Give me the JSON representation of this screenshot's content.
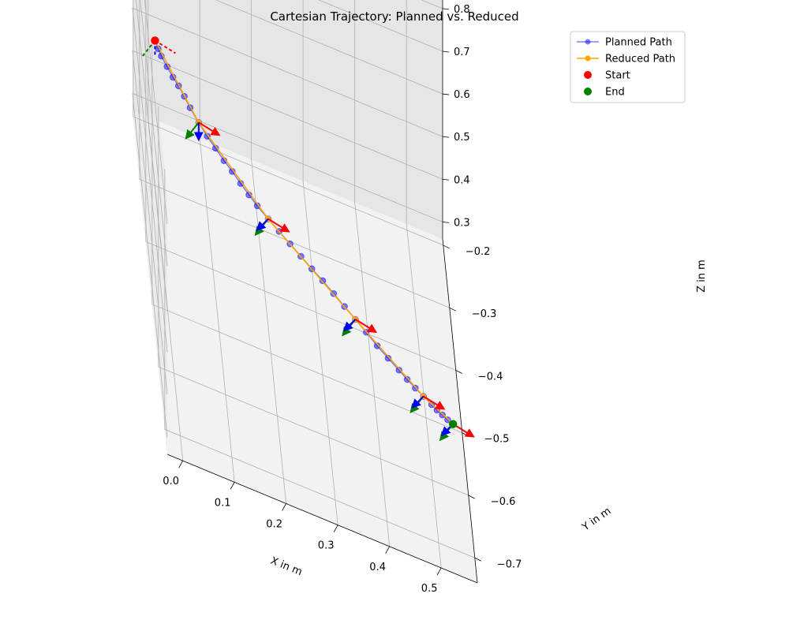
{
  "chart_data": {
    "type": "line3d",
    "title": "Cartesian Trajectory: Planned vs. Reduced",
    "xlabel": "X in m",
    "ylabel": "Y in m",
    "zlabel": "Z in m",
    "x_ticks": [
      "0.0",
      "0.1",
      "0.2",
      "0.3",
      "0.4",
      "0.5"
    ],
    "y_ticks": [
      "−0.7",
      "−0.6",
      "−0.5",
      "−0.4",
      "−0.3",
      "−0.2"
    ],
    "z_ticks": [
      "0.3",
      "0.4",
      "0.5",
      "0.6",
      "0.7",
      "0.8"
    ],
    "xlim": [
      -0.03,
      0.57
    ],
    "ylim": [
      -0.74,
      -0.19
    ],
    "zlim": [
      0.26,
      0.87
    ],
    "grid": true,
    "legend_position": "top-right",
    "legend": [
      {
        "label": "Planned Path",
        "kind": "line-marker",
        "color": "#0000ff"
      },
      {
        "label": "Reduced Path",
        "kind": "line-marker",
        "color": "#ffa500"
      },
      {
        "label": "Start",
        "kind": "point",
        "color": "#ff0000"
      },
      {
        "label": "End",
        "kind": "point",
        "color": "#008000"
      }
    ],
    "series": [
      {
        "name": "Planned Path",
        "color": "#0000ff",
        "points": [
          [
            0.0,
            -0.3,
            0.6
          ],
          [
            0.005,
            -0.31,
            0.598
          ],
          [
            0.01,
            -0.318,
            0.595
          ],
          [
            0.02,
            -0.328,
            0.59
          ],
          [
            0.03,
            -0.338,
            0.585
          ],
          [
            0.04,
            -0.345,
            0.58
          ],
          [
            0.05,
            -0.355,
            0.575
          ],
          [
            0.06,
            -0.365,
            0.568
          ],
          [
            0.075,
            -0.378,
            0.56
          ],
          [
            0.09,
            -0.39,
            0.553
          ],
          [
            0.105,
            -0.4,
            0.547
          ],
          [
            0.12,
            -0.41,
            0.54
          ],
          [
            0.135,
            -0.418,
            0.534
          ],
          [
            0.15,
            -0.428,
            0.528
          ],
          [
            0.165,
            -0.437,
            0.522
          ],
          [
            0.18,
            -0.446,
            0.517
          ],
          [
            0.2,
            -0.456,
            0.511
          ],
          [
            0.22,
            -0.465,
            0.505
          ],
          [
            0.24,
            -0.474,
            0.499
          ],
          [
            0.26,
            -0.483,
            0.493
          ],
          [
            0.28,
            -0.492,
            0.487
          ],
          [
            0.3,
            -0.5,
            0.481
          ],
          [
            0.32,
            -0.509,
            0.474
          ],
          [
            0.34,
            -0.518,
            0.467
          ],
          [
            0.36,
            -0.527,
            0.46
          ],
          [
            0.38,
            -0.536,
            0.453
          ],
          [
            0.4,
            -0.546,
            0.446
          ],
          [
            0.42,
            -0.555,
            0.44
          ],
          [
            0.44,
            -0.563,
            0.434
          ],
          [
            0.455,
            -0.57,
            0.43
          ],
          [
            0.47,
            -0.576,
            0.426
          ],
          [
            0.485,
            -0.582,
            0.423
          ],
          [
            0.5,
            -0.588,
            0.42
          ],
          [
            0.51,
            -0.592,
            0.418
          ],
          [
            0.52,
            -0.595,
            0.416
          ],
          [
            0.53,
            -0.598,
            0.414
          ],
          [
            0.54,
            -0.6,
            0.412
          ]
        ]
      },
      {
        "name": "Reduced Path",
        "color": "#ffa500",
        "points": [
          [
            0.0,
            -0.3,
            0.6
          ],
          [
            0.075,
            -0.378,
            0.56
          ],
          [
            0.2,
            -0.456,
            0.511
          ],
          [
            0.36,
            -0.527,
            0.46
          ],
          [
            0.485,
            -0.582,
            0.423
          ],
          [
            0.54,
            -0.6,
            0.412
          ]
        ]
      }
    ],
    "start": [
      0.0,
      -0.3,
      0.6
    ],
    "end": [
      0.54,
      -0.6,
      0.412
    ],
    "frames": [
      [
        0.0,
        -0.3,
        0.6
      ],
      [
        0.075,
        -0.378,
        0.56
      ],
      [
        0.2,
        -0.456,
        0.511
      ],
      [
        0.36,
        -0.527,
        0.46
      ],
      [
        0.485,
        -0.582,
        0.423
      ],
      [
        0.54,
        -0.6,
        0.412
      ]
    ],
    "frame_axis_colors": {
      "x": "#ff0000",
      "y": "#008000",
      "z": "#0000ff"
    }
  }
}
